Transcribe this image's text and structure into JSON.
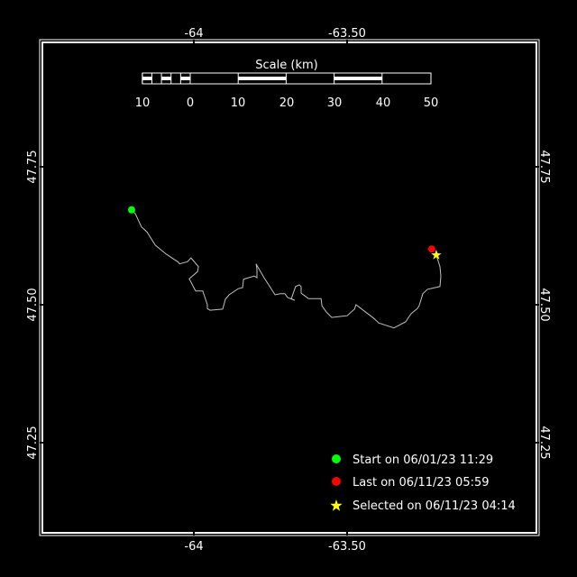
{
  "axes": {
    "x_ticks": [
      {
        "value": -64,
        "label": "-64"
      },
      {
        "value": -63.5,
        "label": "-63.50"
      }
    ],
    "y_ticks": [
      {
        "value": 47.75,
        "label": "47.75"
      },
      {
        "value": 47.5,
        "label": "47.50"
      },
      {
        "value": 47.25,
        "label": "47.25"
      }
    ]
  },
  "scale_bar": {
    "title": "Scale (km)",
    "labels": [
      "10",
      "0",
      "10",
      "20",
      "30",
      "40",
      "50"
    ]
  },
  "track": {
    "color": "#c0c0c0",
    "points": [
      [
        -64.203,
        47.672
      ],
      [
        -64.191,
        47.665
      ],
      [
        -64.171,
        47.641
      ],
      [
        -64.153,
        47.632
      ],
      [
        -64.126,
        47.608
      ],
      [
        -64.091,
        47.592
      ],
      [
        -64.05,
        47.577
      ],
      [
        -64.047,
        47.574
      ],
      [
        -64.021,
        47.578
      ],
      [
        -64.009,
        47.585
      ],
      [
        -63.985,
        47.569
      ],
      [
        -63.988,
        47.56
      ],
      [
        -64.015,
        47.547
      ],
      [
        -63.997,
        47.528
      ],
      [
        -63.994,
        47.525
      ],
      [
        -63.971,
        47.525
      ],
      [
        -63.956,
        47.5
      ],
      [
        -63.956,
        47.493
      ],
      [
        -63.947,
        47.49
      ],
      [
        -63.906,
        47.492
      ],
      [
        -63.897,
        47.51
      ],
      [
        -63.885,
        47.518
      ],
      [
        -63.856,
        47.529
      ],
      [
        -63.841,
        47.531
      ],
      [
        -63.838,
        47.546
      ],
      [
        -63.821,
        47.549
      ],
      [
        -63.803,
        47.552
      ],
      [
        -63.794,
        47.549
      ],
      [
        -63.794,
        47.565
      ],
      [
        -63.797,
        47.574
      ],
      [
        -63.771,
        47.549
      ],
      [
        -63.735,
        47.518
      ],
      [
        -63.718,
        47.52
      ],
      [
        -63.703,
        47.52
      ],
      [
        -63.694,
        47.513
      ],
      [
        -63.671,
        47.508
      ],
      [
        -63.682,
        47.511
      ],
      [
        -63.668,
        47.533
      ],
      [
        -63.656,
        47.536
      ],
      [
        -63.65,
        47.533
      ],
      [
        -63.65,
        47.521
      ],
      [
        -63.638,
        47.516
      ],
      [
        -63.626,
        47.511
      ],
      [
        -63.585,
        47.511
      ],
      [
        -63.582,
        47.498
      ],
      [
        -63.568,
        47.487
      ],
      [
        -63.55,
        47.477
      ],
      [
        -63.5,
        47.48
      ],
      [
        -63.476,
        47.492
      ],
      [
        -63.471,
        47.5
      ],
      [
        -63.412,
        47.475
      ],
      [
        -63.397,
        47.467
      ],
      [
        -63.347,
        47.458
      ],
      [
        -63.309,
        47.469
      ],
      [
        -63.291,
        47.484
      ],
      [
        -63.271,
        47.493
      ],
      [
        -63.265,
        47.498
      ],
      [
        -63.253,
        47.52
      ],
      [
        -63.238,
        47.528
      ],
      [
        -63.197,
        47.533
      ],
      [
        -63.194,
        47.552
      ],
      [
        -63.197,
        47.569
      ],
      [
        -63.209,
        47.59
      ]
    ]
  },
  "markers": {
    "start": {
      "lon": -64.203,
      "lat": 47.672,
      "color": "#00ff00"
    },
    "last": {
      "lon": -63.224,
      "lat": 47.601,
      "color": "#ff0000"
    },
    "selected": {
      "lon": -63.209,
      "lat": 47.59,
      "color": "#ffff00"
    }
  },
  "legend": {
    "start": "Start on 06/01/23 11:29",
    "last": "Last on 06/11/23 05:59",
    "selected": "Selected on 06/11/23 04:14"
  }
}
